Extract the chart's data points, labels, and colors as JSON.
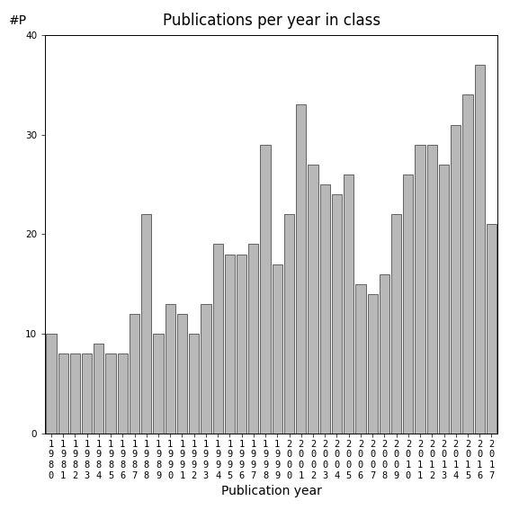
{
  "title": "Publications per year in class",
  "xlabel": "Publication year",
  "ylabel": "#P",
  "years": [
    1980,
    1981,
    1982,
    1983,
    1984,
    1985,
    1986,
    1987,
    1988,
    1989,
    1990,
    1991,
    1992,
    1993,
    1994,
    1995,
    1996,
    1997,
    1998,
    1999,
    2000,
    2001,
    2002,
    2003,
    2004,
    2005,
    2006,
    2007,
    2008,
    2009,
    2010,
    2011,
    2012,
    2013,
    2014,
    2015,
    2016,
    2017
  ],
  "values": [
    10,
    8,
    8,
    8,
    9,
    8,
    8,
    12,
    22,
    10,
    13,
    12,
    10,
    13,
    19,
    18,
    18,
    19,
    29,
    17,
    22,
    33,
    27,
    25,
    24,
    26,
    15,
    14,
    16,
    22,
    26,
    29,
    29,
    27,
    31,
    34,
    37,
    21
  ],
  "bar_color": "#b8b8b8",
  "bar_edgecolor": "#333333",
  "ylim": [
    0,
    40
  ],
  "yticks": [
    0,
    10,
    20,
    30,
    40
  ],
  "background_color": "#ffffff",
  "title_fontsize": 12,
  "axis_fontsize": 10,
  "tick_fontsize": 7.5
}
